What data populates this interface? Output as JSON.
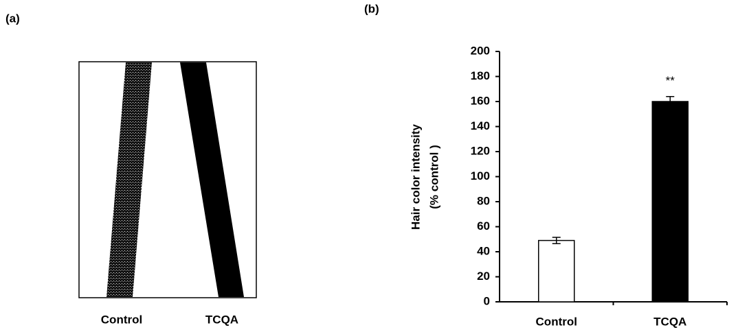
{
  "panel_a": {
    "label": "(a)",
    "labels": [
      "Control",
      "TCQA"
    ]
  },
  "chart_data": {
    "type": "bar",
    "panel_label": "(b)",
    "y_label": [
      "Hair color intensity",
      "(% control )"
    ],
    "categories": [
      "Control",
      "TCQA"
    ],
    "values": [
      49,
      160
    ],
    "errors": [
      2.5,
      4
    ],
    "colors": [
      "#ffffff",
      "#000000"
    ],
    "annotation": "**",
    "ylim": [
      0,
      200
    ],
    "yticks": [
      0,
      20,
      40,
      60,
      80,
      100,
      120,
      140,
      160,
      180,
      200
    ]
  }
}
